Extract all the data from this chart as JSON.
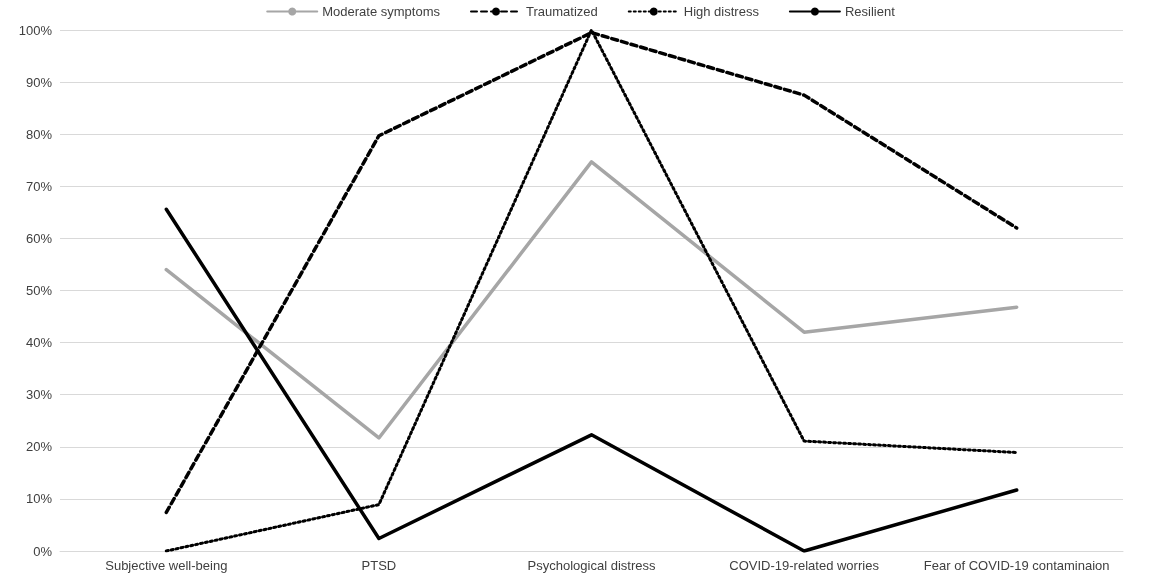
{
  "chart_data": {
    "type": "line",
    "categories": [
      "Subjective well-being",
      "PTSD",
      "Psychological distress",
      "COVID-19-related worries",
      "Fear of COVID-19 contaminaion"
    ],
    "series": [
      {
        "name": "Moderate symptoms",
        "color": "#a6a6a6",
        "line_style": "solid",
        "values": [
          54,
          21.7,
          74.7,
          42,
          46.8
        ]
      },
      {
        "name": "Traumatized",
        "color": "#000000",
        "line_style": "dashed",
        "values": [
          7.4,
          79.7,
          99.5,
          87.5,
          62
        ]
      },
      {
        "name": "High distress",
        "color": "#000000",
        "line_style": "dotted",
        "values": [
          0,
          8.9,
          100,
          21.1,
          18.9
        ]
      },
      {
        "name": "Resilient",
        "color": "#000000",
        "line_style": "solid",
        "values": [
          65.6,
          2.4,
          22.3,
          0,
          11.7
        ]
      }
    ],
    "ylim": [
      0,
      100
    ],
    "yticks": [
      {
        "value": 0,
        "label": "0%"
      },
      {
        "value": 10,
        "label": "10%"
      },
      {
        "value": 20,
        "label": "20%"
      },
      {
        "value": 30,
        "label": "30%"
      },
      {
        "value": 40,
        "label": "40%"
      },
      {
        "value": 50,
        "label": "50%"
      },
      {
        "value": 60,
        "label": "60%"
      },
      {
        "value": 70,
        "label": "70%"
      },
      {
        "value": 80,
        "label": "80%"
      },
      {
        "value": 90,
        "label": "90%"
      },
      {
        "value": 100,
        "label": "100%"
      }
    ],
    "grid": "y",
    "legend": "top",
    "marker": "none"
  }
}
